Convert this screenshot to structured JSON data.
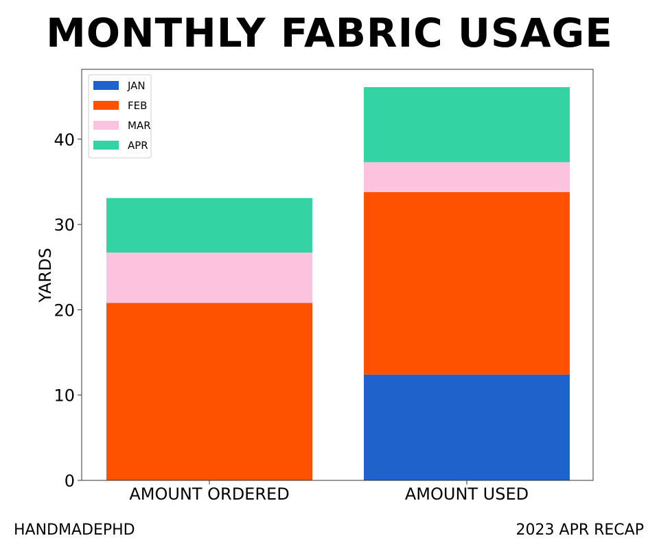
{
  "chart_data": {
    "type": "bar",
    "stacked": true,
    "title": "MONTHLY FABRIC USAGE",
    "xlabel": "",
    "ylabel": "YARDS",
    "categories": [
      "AMOUNT ORDERED",
      "AMOUNT USED"
    ],
    "series": [
      {
        "name": "JAN",
        "color": "#1f62cc",
        "values": [
          0,
          12.4
        ]
      },
      {
        "name": "FEB",
        "color": "#ff5200",
        "values": [
          20.8,
          21.4
        ]
      },
      {
        "name": "MAR",
        "color": "#fdc3de",
        "values": [
          5.9,
          3.5
        ]
      },
      {
        "name": "APR",
        "color": "#33d3a3",
        "values": [
          6.4,
          8.8
        ]
      }
    ],
    "ylim": [
      0,
      48
    ],
    "yticks": [
      0,
      10,
      20,
      30,
      40
    ],
    "grid": false,
    "legend": "top-left"
  },
  "footer": {
    "left": "HANDMADEPHD",
    "right": "2023 APR RECAP"
  }
}
